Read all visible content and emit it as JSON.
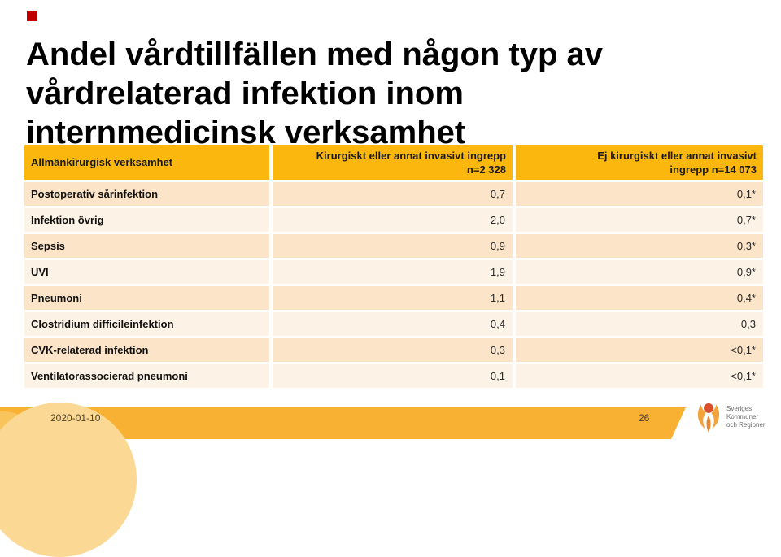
{
  "slide": {
    "title": "Andel vårdtillfällen med någon typ av\nvårdrelaterad infektion inom\ninternmedicinsk verksamhet"
  },
  "table": {
    "columns": [
      {
        "label": "Allmänkirurgisk verksamhet"
      },
      {
        "label": "Kirurgiskt eller annat invasivt ingrepp\nn=2 328"
      },
      {
        "label": "Ej kirurgiskt eller annat invasivt\ningrepp n=14 073"
      }
    ],
    "rows": [
      [
        "Postoperativ sårinfektion",
        "0,7",
        "0,1*"
      ],
      [
        "Infektion övrig",
        "2,0",
        "0,7*"
      ],
      [
        "Sepsis",
        "0,9",
        "0,3*"
      ],
      [
        "UVI",
        "1,9",
        "0,9*"
      ],
      [
        "Pneumoni",
        "1,1",
        "0,4*"
      ],
      [
        "Clostridium difficileinfektion",
        "0,4",
        "0,3"
      ],
      [
        "CVK-relaterad infektion",
        "0,3",
        "<0,1*"
      ],
      [
        "Ventilatorassocierad pneumoni",
        "0,1",
        "<0,1*"
      ]
    ]
  },
  "footer": {
    "date": "2020-01-10",
    "page_number": "26",
    "logo_text": "Sveriges\nKommuner\noch Regioner"
  },
  "colors": {
    "accent_red": "#c00000",
    "header_gold": "#fbb70d",
    "row_odd": "#fce4c9",
    "row_even": "#fdf2e6",
    "footer_gold": "#f8b133",
    "circle_light": "#f9c45c",
    "circle_lighter": "#fbd994",
    "logo_orange": "#f2a33c",
    "logo_red": "#d94f2b"
  }
}
